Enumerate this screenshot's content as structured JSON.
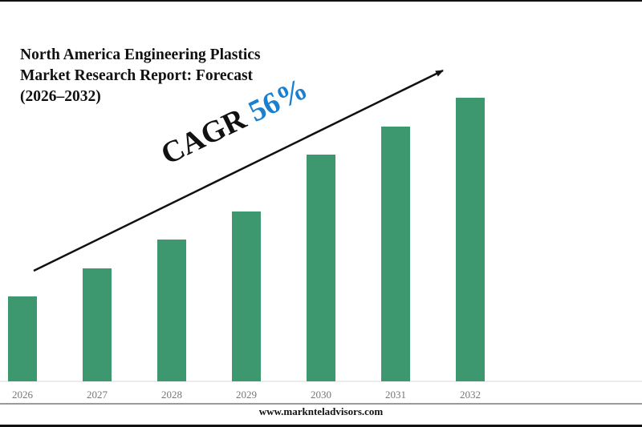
{
  "chart_data": {
    "type": "bar",
    "title": [
      "North America Engineering Plastics",
      "Market Research Report: Forecast",
      "(2026–2032)"
    ],
    "categories": [
      "2026",
      "2027",
      "2028",
      "2029",
      "2030",
      "2031",
      "2032"
    ],
    "values": [
      106,
      141,
      177,
      212,
      283,
      318,
      354
    ],
    "value_note_scale": "relative (no y-axis printed)",
    "ylim": [
      0,
      354
    ],
    "xlabel": "",
    "ylabel": "",
    "grid": false,
    "bar_color": "#3d9870",
    "annotation": {
      "label": "CAGR",
      "value": "56%",
      "value_color": "#1a7fcf",
      "arrow": "upward trend"
    }
  },
  "footer": {
    "website": "www.marknteladvisors.com"
  }
}
